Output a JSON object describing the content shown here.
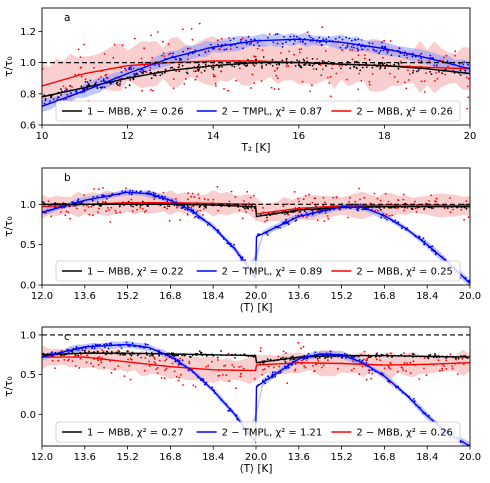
{
  "colors": {
    "mbb1": "#000000",
    "tmpl2": "#0000ff",
    "mbb2": "#ff0000",
    "band_red": "#f4a6a6",
    "band_blue": "#7f8fff",
    "ref_line": "#000000"
  },
  "chart_data": [
    {
      "type": "scatter",
      "panel_label": "a",
      "xlabel": "T₂ [K]",
      "ylabel": "τ/τ₀",
      "xlim": [
        10,
        20
      ],
      "ylim": [
        0.6,
        1.35
      ],
      "x_ticks": [
        10,
        12,
        14,
        16,
        18,
        20
      ],
      "x_tick_labels": [
        "10",
        "12",
        "14",
        "16",
        "18",
        "20"
      ],
      "y_ticks": [
        0.6,
        0.8,
        1.0,
        1.2
      ],
      "y_tick_labels": [
        "0.6",
        "0.8",
        "1.0",
        "1.2"
      ],
      "reference_line": 1.0,
      "legend": [
        {
          "label": "1 − MBB, χ² = 0.26",
          "color": "mbb1"
        },
        {
          "label": "2 − TMPL, χ² = 0.87",
          "color": "tmpl2"
        },
        {
          "label": "2 − MBB, χ² = 0.26",
          "color": "mbb2"
        }
      ],
      "series": [
        {
          "color": "mbb1",
          "x": [
            10,
            11,
            12,
            13,
            14,
            15,
            16,
            17,
            18,
            19,
            20
          ],
          "y": [
            0.78,
            0.84,
            0.9,
            0.95,
            0.98,
            1.0,
            1.0,
            0.99,
            0.98,
            0.96,
            0.93
          ]
        },
        {
          "color": "tmpl2",
          "x": [
            10,
            11,
            12,
            13,
            14,
            15,
            16,
            17,
            18,
            19,
            20
          ],
          "y": [
            0.72,
            0.82,
            0.93,
            1.03,
            1.1,
            1.14,
            1.15,
            1.13,
            1.09,
            1.03,
            0.96
          ]
        },
        {
          "color": "mbb2",
          "x": [
            10,
            11,
            12,
            13,
            14,
            15,
            16,
            17,
            18,
            19,
            20
          ],
          "y": [
            0.85,
            0.93,
            0.98,
            1.0,
            1.01,
            1.01,
            1.0,
            0.99,
            0.98,
            0.97,
            0.96
          ]
        }
      ]
    },
    {
      "type": "scatter",
      "panel_label": "b",
      "xlabel": "⟨T⟩ [K]",
      "ylabel": "τ/τ₀",
      "xlim": [
        12.0,
        20.0
      ],
      "ylim": [
        0.0,
        1.45
      ],
      "x_ticks": [
        12.0,
        12.8,
        13.6,
        14.4,
        15.2,
        16.0,
        16.8,
        17.6,
        18.4,
        19.2,
        20.0
      ],
      "x_tick_labels": [
        "12.0",
        "13.6",
        "15.2",
        "16.8",
        "18.4",
        "20.0",
        "13.6",
        "15.2",
        "16.8",
        "18.4",
        "20.0"
      ],
      "x_tick_label_positions": [
        12.0,
        12.8,
        13.6,
        14.4,
        15.2,
        16.0,
        16.8,
        17.6,
        18.4,
        19.2,
        20.0
      ],
      "y_ticks": [
        0.0,
        0.5,
        1.0
      ],
      "y_tick_labels": [
        "0.0",
        "0.5",
        "1.0"
      ],
      "reference_line": 1.0,
      "legend": [
        {
          "label": "1 − MBB, χ² = 0.22",
          "color": "mbb1"
        },
        {
          "label": "2 − TMPL, χ² = 0.89",
          "color": "tmpl2"
        },
        {
          "label": "2 − MBB, χ² = 0.25",
          "color": "mbb2"
        }
      ],
      "series": [
        {
          "color": "mbb1",
          "x": [
            12.0,
            12.8,
            13.6,
            14.4,
            15.2,
            15.99,
            16.01,
            16.8,
            17.6,
            18.4,
            19.2,
            20.0
          ],
          "y": [
            1.0,
            1.0,
            1.0,
            1.0,
            0.99,
            0.97,
            0.85,
            0.93,
            0.96,
            0.97,
            0.97,
            0.97
          ]
        },
        {
          "color": "tmpl2",
          "x": [
            12.0,
            12.8,
            13.6,
            14.0,
            14.4,
            14.8,
            15.2,
            15.6,
            15.99,
            16.01,
            16.8,
            17.6,
            18.0,
            18.4,
            18.8,
            19.2,
            19.6,
            20.0
          ],
          "y": [
            0.9,
            1.05,
            1.15,
            1.13,
            1.05,
            0.92,
            0.72,
            0.45,
            0.1,
            0.6,
            0.85,
            0.97,
            0.96,
            0.86,
            0.7,
            0.5,
            0.27,
            0.02
          ]
        },
        {
          "color": "mbb2",
          "x": [
            12.0,
            12.8,
            13.6,
            14.4,
            15.2,
            15.99,
            16.01,
            16.8,
            17.6,
            18.4,
            19.2,
            20.0
          ],
          "y": [
            0.97,
            1.0,
            1.02,
            1.02,
            1.01,
            1.0,
            0.88,
            0.95,
            0.98,
            0.99,
            0.99,
            0.98
          ]
        }
      ]
    },
    {
      "type": "scatter",
      "panel_label": "c",
      "xlabel": "⟨T⟩ [K]",
      "ylabel": "τ/τ₀",
      "xlim": [
        12.0,
        20.0
      ],
      "ylim": [
        -0.4,
        1.1
      ],
      "x_ticks": [
        12.0,
        12.8,
        13.6,
        14.4,
        15.2,
        16.0,
        16.8,
        17.6,
        18.4,
        19.2,
        20.0
      ],
      "x_tick_labels": [
        "12.0",
        "13.6",
        "15.2",
        "16.8",
        "18.4",
        "20.0",
        "13.6",
        "15.2",
        "16.8",
        "18.4",
        "20.0"
      ],
      "y_ticks": [
        0.0,
        0.5,
        1.0
      ],
      "y_tick_labels": [
        "0.0",
        "0.5",
        "1.0"
      ],
      "reference_line": 1.0,
      "legend": [
        {
          "label": "1 − MBB, χ² = 0.27",
          "color": "mbb1"
        },
        {
          "label": "2 − TMPL, χ² = 1.21",
          "color": "tmpl2"
        },
        {
          "label": "2 − MBB, χ² = 0.26",
          "color": "mbb2"
        }
      ],
      "series": [
        {
          "color": "mbb1",
          "x": [
            12.0,
            12.8,
            13.6,
            14.4,
            15.2,
            15.99,
            16.01,
            16.8,
            17.6,
            18.4,
            19.2,
            20.0
          ],
          "y": [
            0.75,
            0.77,
            0.77,
            0.76,
            0.75,
            0.74,
            0.65,
            0.72,
            0.74,
            0.74,
            0.73,
            0.72
          ]
        },
        {
          "color": "tmpl2",
          "x": [
            12.0,
            12.8,
            13.6,
            14.0,
            14.4,
            14.8,
            15.2,
            15.6,
            15.99,
            16.01,
            16.8,
            17.2,
            17.6,
            18.0,
            18.4,
            18.8,
            19.2,
            19.6,
            20.0
          ],
          "y": [
            0.72,
            0.85,
            0.88,
            0.84,
            0.73,
            0.55,
            0.3,
            0.0,
            -0.35,
            0.35,
            0.7,
            0.76,
            0.75,
            0.65,
            0.48,
            0.25,
            -0.02,
            -0.25,
            -0.4
          ]
        },
        {
          "color": "mbb2",
          "x": [
            12.0,
            12.8,
            13.6,
            14.4,
            15.2,
            15.99,
            16.01,
            16.8,
            17.6,
            18.4,
            19.2,
            20.0
          ],
          "y": [
            0.72,
            0.72,
            0.66,
            0.6,
            0.56,
            0.55,
            0.62,
            0.65,
            0.64,
            0.62,
            0.63,
            0.65
          ]
        }
      ]
    }
  ]
}
